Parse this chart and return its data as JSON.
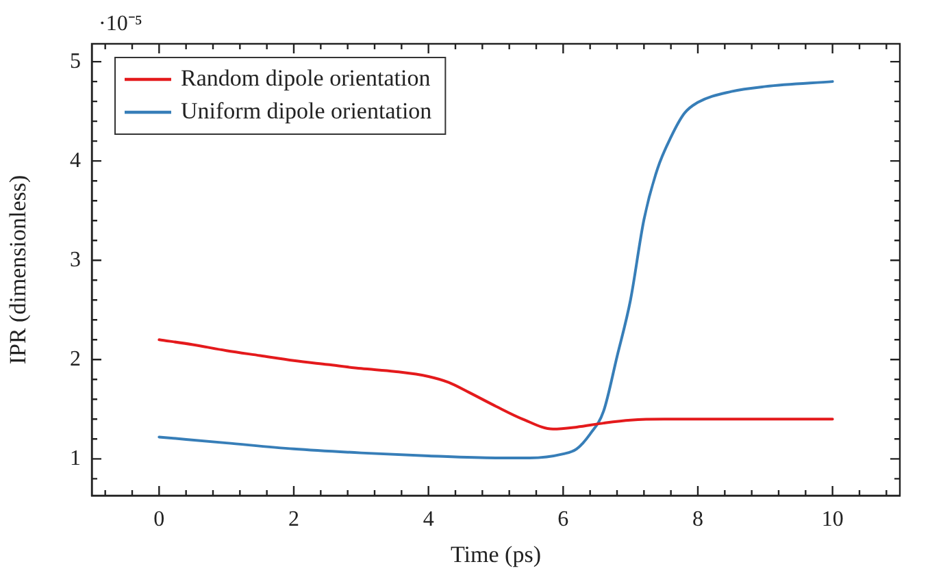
{
  "chart_data": {
    "type": "line",
    "xlabel": "Time (ps)",
    "ylabel": "IPR (dimensionless)",
    "annotations": [
      "·10⁻⁵"
    ],
    "xlim": [
      -1,
      11
    ],
    "xticks": [
      {
        "value": -0.8,
        "label": null
      },
      {
        "value": -0.4,
        "label": null
      },
      0,
      {
        "value": 0.4,
        "label": null
      },
      {
        "value": 0.8,
        "label": null
      },
      {
        "value": 1.2,
        "label": null
      },
      {
        "value": 1.6,
        "label": null
      },
      2,
      {
        "value": 2.4,
        "label": null
      },
      {
        "value": 2.8,
        "label": null
      },
      {
        "value": 3.2,
        "label": null
      },
      {
        "value": 3.6,
        "label": null
      },
      4,
      {
        "value": 4.4,
        "label": null
      },
      {
        "value": 4.8,
        "label": null
      },
      {
        "value": 5.2,
        "label": null
      },
      {
        "value": 5.6,
        "label": null
      },
      6,
      {
        "value": 6.4,
        "label": null
      },
      {
        "value": 6.8,
        "label": null
      },
      {
        "value": 7.2,
        "label": null
      },
      {
        "value": 7.6,
        "label": null
      },
      8,
      {
        "value": 8.4,
        "label": null
      },
      {
        "value": 8.8,
        "label": null
      },
      {
        "value": 9.2,
        "label": null
      },
      {
        "value": 9.6,
        "label": null
      },
      10,
      {
        "value": 10.4,
        "label": null
      },
      {
        "value": 10.8,
        "label": null
      }
    ],
    "ylim": [
      0.63,
      5.18
    ],
    "yticks": [
      {
        "value": 0.8,
        "label": null
      },
      1,
      {
        "value": 1.2,
        "label": null
      },
      {
        "value": 1.4,
        "label": null
      },
      {
        "value": 1.6,
        "label": null
      },
      {
        "value": 1.8,
        "label": null
      },
      2,
      {
        "value": 2.2,
        "label": null
      },
      {
        "value": 2.4,
        "label": null
      },
      {
        "value": 2.6,
        "label": null
      },
      {
        "value": 2.8,
        "label": null
      },
      3,
      {
        "value": 3.2,
        "label": null
      },
      {
        "value": 3.4,
        "label": null
      },
      {
        "value": 3.6,
        "label": null
      },
      {
        "value": 3.8,
        "label": null
      },
      4,
      {
        "value": 4.2,
        "label": null
      },
      {
        "value": 4.4,
        "label": null
      },
      {
        "value": 4.6,
        "label": null
      },
      {
        "value": 4.8,
        "label": null
      },
      5
    ],
    "legend": "top left",
    "marker": "none",
    "line_style": "solid",
    "series": [
      {
        "name": "Random dipole orientation",
        "color": "#e41a1c",
        "x": [
          0,
          0.5,
          1,
          1.5,
          2,
          2.5,
          3,
          3.5,
          4,
          4.3,
          4.6,
          5,
          5.4,
          5.85,
          6.2,
          6.6,
          7,
          7.5,
          8,
          9,
          10
        ],
        "values": [
          2.2,
          2.15,
          2.09,
          2.04,
          1.99,
          1.95,
          1.91,
          1.88,
          1.83,
          1.77,
          1.67,
          1.53,
          1.4,
          1.3,
          1.32,
          1.36,
          1.39,
          1.4,
          1.4,
          1.4,
          1.4
        ]
      },
      {
        "name": "Uniform dipole orientation",
        "color": "#377eb8",
        "x": [
          0,
          1,
          2,
          3,
          4,
          5,
          5.5,
          6,
          6.2,
          6.4,
          6.6,
          6.8,
          7,
          7.2,
          7.4,
          7.6,
          7.8,
          8,
          8.5,
          9,
          10
        ],
        "values": [
          1.22,
          1.16,
          1.1,
          1.06,
          1.03,
          1.01,
          1.01,
          1.05,
          1.1,
          1.25,
          1.48,
          2.03,
          2.6,
          3.41,
          3.92,
          4.24,
          4.48,
          4.59,
          4.7,
          4.75,
          4.8
        ]
      }
    ]
  }
}
